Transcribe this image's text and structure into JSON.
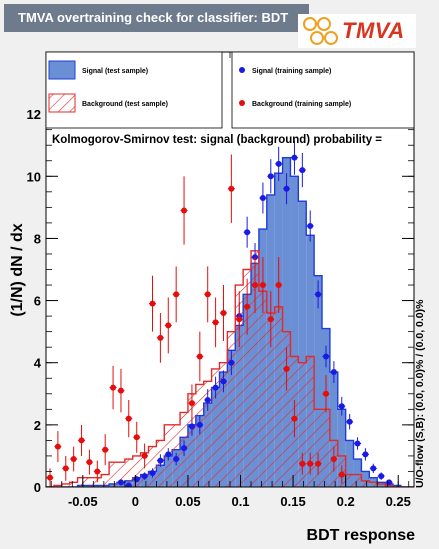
{
  "header": {
    "title": "TMVA overtraining check for classifier: BDT",
    "logo": "TMVA"
  },
  "colors": {
    "signal_fill": "#6b8fd4",
    "signal_line": "#1f3cd6",
    "signal_point": "#1a1ae6",
    "background_line": "#e22a2a",
    "background_point": "#e60d0d",
    "title_bg": "#6d7b8d",
    "page_bg": "#f0f0f0"
  },
  "chart_data": {
    "type": "bar",
    "xlabel": "BDT response",
    "ylabel": "(1/N) dN / dx",
    "xlim": [
      -0.085,
      0.265
    ],
    "ylim": [
      0,
      14
    ],
    "x_ticks": [
      "-0.05",
      "0",
      "0.05",
      "0.1",
      "0.15",
      "0.2",
      "0.25"
    ],
    "x_tick_values": [
      -0.05,
      0,
      0.05,
      0.1,
      0.15,
      0.2,
      0.25
    ],
    "y_ticks": [
      "0",
      "2",
      "4",
      "6",
      "8",
      "10",
      "12"
    ],
    "y_tick_values": [
      0,
      2,
      4,
      6,
      8,
      10,
      12
    ],
    "bin_edges": [
      -0.085,
      -0.0775,
      -0.07,
      -0.0625,
      -0.055,
      -0.0475,
      -0.04,
      -0.0325,
      -0.025,
      -0.0175,
      -0.01,
      -0.0025,
      0.005,
      0.0125,
      0.02,
      0.0275,
      0.035,
      0.0425,
      0.05,
      0.0575,
      0.065,
      0.0725,
      0.08,
      0.0875,
      0.095,
      0.1025,
      0.11,
      0.1175,
      0.125,
      0.1325,
      0.14,
      0.1475,
      0.155,
      0.1625,
      0.17,
      0.1775,
      0.185,
      0.1925,
      0.2,
      0.2075,
      0.215,
      0.2225,
      0.23,
      0.2375,
      0.245,
      0.2525,
      0.26,
      0.265
    ],
    "legend": {
      "placement": "top",
      "entries": [
        {
          "label": "Signal (test sample)",
          "style": "filled"
        },
        {
          "label": "Signal (training sample)",
          "style": "points"
        },
        {
          "label": "Background (test sample)",
          "style": "hatched"
        },
        {
          "label": "Background (training sample)",
          "style": "points"
        }
      ]
    },
    "annotation": "Kolmogorov-Smirnov test: signal (background) probability =",
    "side_label": "U/O-flow (S,B): (0.0, 0.0)% / (0.0, 0.0)%",
    "series": [
      {
        "name": "Signal (test sample)",
        "kind": "histogram-filled",
        "values": [
          0.0,
          0.0,
          0.0,
          0.0,
          0.05,
          0.05,
          0.05,
          0.05,
          0.1,
          0.15,
          0.2,
          0.3,
          0.4,
          0.5,
          0.7,
          1.0,
          1.2,
          1.6,
          2.0,
          2.3,
          2.7,
          3.2,
          3.7,
          4.4,
          5.2,
          6.2,
          7.2,
          8.3,
          9.4,
          10.1,
          10.6,
          10.0,
          9.2,
          8.1,
          6.8,
          5.1,
          3.7,
          2.5,
          1.5,
          0.9,
          0.5,
          0.3,
          0.15,
          0.1,
          0.05,
          0.0,
          0.0
        ]
      },
      {
        "name": "Background (test sample)",
        "kind": "histogram-hatched",
        "values": [
          0.0,
          0.05,
          0.1,
          0.15,
          0.3,
          0.3,
          0.3,
          0.4,
          0.8,
          0.8,
          0.9,
          1.0,
          1.1,
          1.3,
          1.5,
          2.0,
          2.0,
          2.4,
          3.0,
          3.3,
          3.4,
          3.8,
          4.0,
          5.0,
          6.5,
          7.0,
          7.6,
          6.3,
          5.6,
          5.8,
          5.0,
          4.2,
          4.0,
          4.2,
          2.5,
          2.5,
          1.5,
          1.0,
          0.4,
          0.4,
          0.2,
          0.15,
          0.1,
          0.05,
          0.0,
          0.0,
          0.0
        ]
      },
      {
        "name": "Signal (training sample)",
        "kind": "points",
        "x": [
          -0.0137,
          -0.0063,
          0.0013,
          0.0088,
          0.0163,
          0.0238,
          0.0313,
          0.0388,
          0.0463,
          0.0538,
          0.0613,
          0.0688,
          0.0763,
          0.0838,
          0.0913,
          0.0988,
          0.1063,
          0.1138,
          0.1213,
          0.1288,
          0.1363,
          0.1438,
          0.1513,
          0.1588,
          0.1663,
          0.1738,
          0.1813,
          0.1888,
          0.1963,
          0.2038,
          0.2113,
          0.2188,
          0.2263,
          0.2338,
          0.2413
        ],
        "y": [
          0.15,
          0.05,
          0.25,
          0.35,
          0.45,
          0.85,
          1.05,
          0.9,
          1.25,
          1.95,
          2.0,
          2.8,
          3.2,
          3.4,
          4.0,
          5.5,
          8.2,
          7.4,
          9.3,
          10.0,
          10.4,
          9.6,
          10.6,
          10.2,
          8.4,
          6.2,
          4.2,
          3.7,
          2.6,
          2.1,
          1.4,
          1.05,
          0.6,
          0.35,
          0.15
        ],
        "y_err": [
          0.1,
          0.05,
          0.1,
          0.12,
          0.15,
          0.2,
          0.2,
          0.2,
          0.25,
          0.3,
          0.3,
          0.35,
          0.35,
          0.35,
          0.4,
          0.45,
          0.5,
          0.45,
          0.5,
          0.55,
          0.55,
          0.5,
          0.55,
          0.55,
          0.5,
          0.45,
          0.35,
          0.35,
          0.3,
          0.25,
          0.2,
          0.2,
          0.15,
          0.12,
          0.08
        ]
      },
      {
        "name": "Background (training sample)",
        "kind": "points",
        "x": [
          -0.0812,
          -0.0737,
          -0.0662,
          -0.0587,
          -0.0512,
          -0.0437,
          -0.0362,
          -0.0287,
          -0.0212,
          -0.0137,
          -0.0063,
          0.0013,
          0.0088,
          0.0163,
          0.0238,
          0.0313,
          0.0388,
          0.0463,
          0.0538,
          0.0613,
          0.0688,
          0.0763,
          0.0838,
          0.0913,
          0.0988,
          0.1063,
          0.1138,
          0.1213,
          0.1288,
          0.1363,
          0.1438,
          0.1513,
          0.1588,
          0.1663,
          0.1738,
          0.1813,
          0.1888,
          0.1963
        ],
        "y": [
          0.3,
          1.3,
          0.6,
          0.9,
          1.5,
          0.8,
          0.5,
          1.2,
          3.2,
          3.1,
          2.2,
          1.6,
          1.0,
          5.9,
          4.8,
          5.2,
          6.2,
          8.9,
          2.7,
          4.2,
          6.2,
          5.3,
          5.6,
          9.6,
          5.4,
          5.8,
          6.5,
          6.5,
          5.4,
          6.5,
          3.8,
          2.2,
          0.75,
          0.75,
          0.75,
          3.0,
          0.9,
          0.4
        ],
        "y_err": [
          0.3,
          0.5,
          0.4,
          0.4,
          0.5,
          0.4,
          0.35,
          0.5,
          0.7,
          0.7,
          0.6,
          0.5,
          0.4,
          0.9,
          0.8,
          0.9,
          0.9,
          1.1,
          0.6,
          0.8,
          0.9,
          0.8,
          0.9,
          1.1,
          0.9,
          0.9,
          0.9,
          0.9,
          0.9,
          0.9,
          0.7,
          0.6,
          0.35,
          0.35,
          0.35,
          0.6,
          0.4,
          0.3
        ]
      }
    ]
  }
}
